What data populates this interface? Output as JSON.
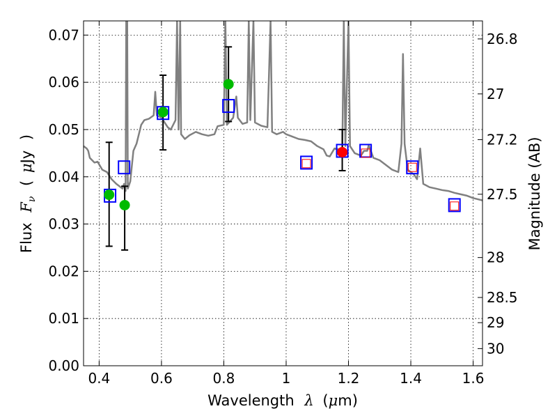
{
  "chart_data": {
    "type": "scatter",
    "xlabel_parts": [
      "Wavelength",
      "λ",
      "(",
      "μ",
      "m)"
    ],
    "ylabel_parts": [
      "Flux",
      "F",
      "ν",
      "(",
      "μ",
      "Jy",
      ")"
    ],
    "y2label": "Magnitude (AB)",
    "xlim": [
      0.35,
      1.63
    ],
    "ylim": [
      0.0,
      0.073
    ],
    "grid": true,
    "x_ticks": [
      {
        "value": 0.4,
        "label": "0.4"
      },
      {
        "value": 0.6,
        "label": "0.6"
      },
      {
        "value": 0.8,
        "label": "0.8"
      },
      {
        "value": 1.0,
        "label": "1"
      },
      {
        "value": 1.2,
        "label": "1.2"
      },
      {
        "value": 1.4,
        "label": "1.4"
      },
      {
        "value": 1.6,
        "label": "1.6"
      }
    ],
    "y_ticks": [
      {
        "value": 0.0,
        "label": "0.00"
      },
      {
        "value": 0.01,
        "label": "0.01"
      },
      {
        "value": 0.02,
        "label": "0.02"
      },
      {
        "value": 0.03,
        "label": "0.03"
      },
      {
        "value": 0.04,
        "label": "0.04"
      },
      {
        "value": 0.05,
        "label": "0.05"
      },
      {
        "value": 0.06,
        "label": "0.06"
      },
      {
        "value": 0.07,
        "label": "0.07"
      }
    ],
    "y2_ticks": [
      {
        "mag": 26.8,
        "label": "26.8"
      },
      {
        "mag": 27.0,
        "label": "27"
      },
      {
        "mag": 27.2,
        "label": "27.2"
      },
      {
        "mag": 27.5,
        "label": "27.5"
      },
      {
        "mag": 28.0,
        "label": "28"
      },
      {
        "mag": 28.5,
        "label": "28.5"
      },
      {
        "mag": 29.0,
        "label": "29"
      },
      {
        "mag": 30.0,
        "label": "30"
      }
    ],
    "series": [
      {
        "kind": "line",
        "color": "#808080",
        "points": [
          [
            0.35,
            0.0465
          ],
          [
            0.36,
            0.046
          ],
          [
            0.365,
            0.0455
          ],
          [
            0.37,
            0.044
          ],
          [
            0.385,
            0.043
          ],
          [
            0.395,
            0.0432
          ],
          [
            0.41,
            0.0415
          ],
          [
            0.425,
            0.041
          ],
          [
            0.44,
            0.0395
          ],
          [
            0.455,
            0.0385
          ],
          [
            0.475,
            0.0375
          ],
          [
            0.48,
            0.0385
          ],
          [
            0.485,
            0.037
          ],
          [
            0.487,
            0.073
          ],
          [
            0.49,
            0.073
          ],
          [
            0.492,
            0.0375
          ],
          [
            0.5,
            0.039
          ],
          [
            0.51,
            0.0455
          ],
          [
            0.52,
            0.047
          ],
          [
            0.535,
            0.051
          ],
          [
            0.545,
            0.052
          ],
          [
            0.56,
            0.0523
          ],
          [
            0.575,
            0.053
          ],
          [
            0.58,
            0.058
          ],
          [
            0.585,
            0.053
          ],
          [
            0.6,
            0.0525
          ],
          [
            0.62,
            0.0505
          ],
          [
            0.63,
            0.05
          ],
          [
            0.645,
            0.052
          ],
          [
            0.65,
            0.073
          ],
          [
            0.655,
            0.05
          ],
          [
            0.66,
            0.073
          ],
          [
            0.663,
            0.049
          ],
          [
            0.675,
            0.048
          ],
          [
            0.69,
            0.0488
          ],
          [
            0.71,
            0.0495
          ],
          [
            0.73,
            0.049
          ],
          [
            0.75,
            0.0487
          ],
          [
            0.77,
            0.049
          ],
          [
            0.78,
            0.0507
          ],
          [
            0.8,
            0.051
          ],
          [
            0.805,
            0.073
          ],
          [
            0.81,
            0.051
          ],
          [
            0.83,
            0.0525
          ],
          [
            0.84,
            0.057
          ],
          [
            0.845,
            0.0525
          ],
          [
            0.86,
            0.0512
          ],
          [
            0.875,
            0.0515
          ],
          [
            0.88,
            0.073
          ],
          [
            0.885,
            0.052
          ],
          [
            0.895,
            0.073
          ],
          [
            0.9,
            0.0515
          ],
          [
            0.92,
            0.0508
          ],
          [
            0.94,
            0.0505
          ],
          [
            0.95,
            0.073
          ],
          [
            0.955,
            0.0495
          ],
          [
            0.97,
            0.049
          ],
          [
            0.99,
            0.0495
          ],
          [
            1.0,
            0.049
          ],
          [
            1.02,
            0.0485
          ],
          [
            1.04,
            0.048
          ],
          [
            1.06,
            0.0478
          ],
          [
            1.08,
            0.0475
          ],
          [
            1.1,
            0.0465
          ],
          [
            1.12,
            0.0458
          ],
          [
            1.13,
            0.0445
          ],
          [
            1.14,
            0.0443
          ],
          [
            1.155,
            0.046
          ],
          [
            1.17,
            0.0458
          ],
          [
            1.18,
            0.045
          ],
          [
            1.185,
            0.073
          ],
          [
            1.19,
            0.0465
          ],
          [
            1.2,
            0.073
          ],
          [
            1.205,
            0.0465
          ],
          [
            1.22,
            0.045
          ],
          [
            1.24,
            0.0445
          ],
          [
            1.25,
            0.0455
          ],
          [
            1.26,
            0.0455
          ],
          [
            1.265,
            0.0467
          ],
          [
            1.28,
            0.044
          ],
          [
            1.3,
            0.0435
          ],
          [
            1.32,
            0.0425
          ],
          [
            1.34,
            0.0415
          ],
          [
            1.36,
            0.041
          ],
          [
            1.37,
            0.047
          ],
          [
            1.375,
            0.066
          ],
          [
            1.38,
            0.047
          ],
          [
            1.39,
            0.0415
          ],
          [
            1.41,
            0.0405
          ],
          [
            1.42,
            0.0395
          ],
          [
            1.43,
            0.046
          ],
          [
            1.44,
            0.0385
          ],
          [
            1.46,
            0.0378
          ],
          [
            1.48,
            0.0375
          ],
          [
            1.5,
            0.0372
          ],
          [
            1.52,
            0.037
          ],
          [
            1.54,
            0.0366
          ],
          [
            1.56,
            0.0363
          ],
          [
            1.58,
            0.036
          ],
          [
            1.6,
            0.0355
          ],
          [
            1.63,
            0.035
          ]
        ]
      },
      {
        "kind": "blue_squares",
        "points": [
          [
            0.435,
            0.036
          ],
          [
            0.48,
            0.042
          ],
          [
            0.605,
            0.0535
          ],
          [
            0.815,
            0.055
          ],
          [
            1.065,
            0.043
          ],
          [
            1.18,
            0.0455
          ],
          [
            1.255,
            0.0455
          ],
          [
            1.405,
            0.042
          ],
          [
            1.54,
            0.034
          ]
        ]
      },
      {
        "kind": "red_squares",
        "points": [
          [
            1.065,
            0.0428
          ],
          [
            1.255,
            0.045
          ],
          [
            1.405,
            0.042
          ],
          [
            1.54,
            0.0338
          ]
        ]
      },
      {
        "kind": "green_points",
        "points": [
          {
            "x": 0.432,
            "y": 0.0362,
            "err": [
              0.0253,
              0.0473
            ]
          },
          {
            "x": 0.482,
            "y": 0.034,
            "err": [
              0.0245,
              0.038
            ]
          },
          {
            "x": 0.605,
            "y": 0.0537,
            "err": [
              0.0457,
              0.0615
            ]
          },
          {
            "x": 0.815,
            "y": 0.0596,
            "err": [
              0.0517,
              0.0675
            ]
          }
        ]
      },
      {
        "kind": "red_points",
        "points": [
          {
            "x": 1.18,
            "y": 0.0452,
            "err": [
              0.0413,
              0.05
            ]
          }
        ]
      }
    ]
  }
}
